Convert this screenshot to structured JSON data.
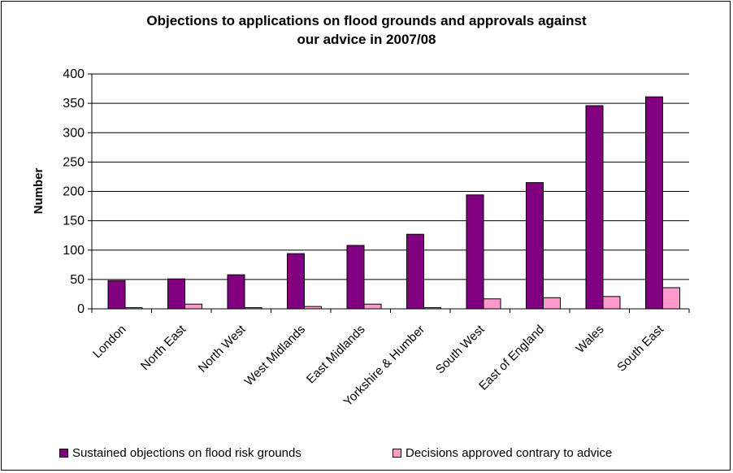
{
  "chart_data": {
    "type": "bar",
    "title_lines": [
      "Objections to applications on flood grounds and approvals against",
      "our advice in 2007/08"
    ],
    "xlabel": "",
    "ylabel": "Number",
    "ylim": [
      0,
      400
    ],
    "yticks": [
      0,
      50,
      100,
      150,
      200,
      250,
      300,
      350,
      400
    ],
    "grid": true,
    "legend_position": "bottom",
    "categories": [
      "London",
      "North East",
      "North West",
      "West Midlands",
      "East Midlands",
      "Yorkshire & Humber",
      "South West",
      "East of England",
      "Wales",
      "South East"
    ],
    "series": [
      {
        "name": "Sustained objections on flood risk grounds",
        "color": "#800080",
        "values": [
          48,
          51,
          58,
          94,
          108,
          127,
          194,
          215,
          346,
          361
        ]
      },
      {
        "name": "Decisions approved contrary to advice",
        "color": "#FF99CC",
        "values": [
          2,
          8,
          2,
          4,
          8,
          2,
          17,
          19,
          21,
          36
        ]
      }
    ]
  }
}
